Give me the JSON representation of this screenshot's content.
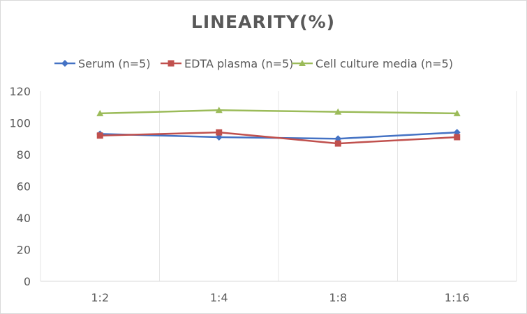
{
  "chart_data": {
    "type": "line",
    "title": "LINEARITY(%)",
    "categories": [
      "1:2",
      "1:4",
      "1:8",
      "1:16"
    ],
    "series": [
      {
        "name": "Serum (n=5)",
        "values": [
          93,
          91,
          90,
          94
        ],
        "color": "#4472c4",
        "marker": "diamond"
      },
      {
        "name": "EDTA plasma (n=5)",
        "values": [
          92,
          94,
          87,
          91
        ],
        "color": "#c0504d",
        "marker": "square"
      },
      {
        "name": "Cell culture media (n=5)",
        "values": [
          106,
          108,
          107,
          106
        ],
        "color": "#9bbb59",
        "marker": "triangle"
      }
    ],
    "ylim": [
      0,
      120
    ],
    "yticks": [
      "0",
      "20",
      "40",
      "60",
      "80",
      "100",
      "120"
    ],
    "legend": "top",
    "grid": "vertical category separators"
  }
}
